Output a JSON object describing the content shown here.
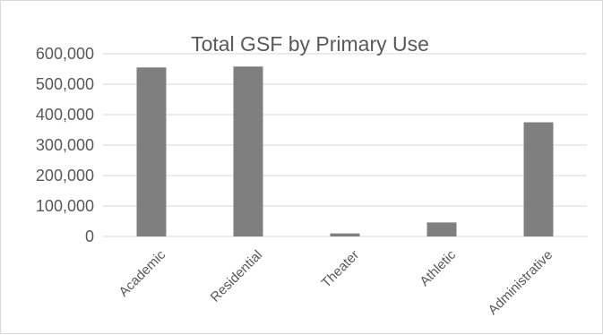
{
  "chart_data": {
    "type": "bar",
    "title": "Total GSF by Primary Use",
    "xlabel": "",
    "ylabel": "",
    "categories": [
      "Academic",
      "Residential",
      "Theater",
      "Athletic",
      "Administrative"
    ],
    "values": [
      555000,
      558000,
      10000,
      46000,
      375000
    ],
    "ylim": [
      0,
      600000
    ],
    "yticks": [
      0,
      100000,
      200000,
      300000,
      400000,
      500000,
      600000
    ],
    "ytick_labels": [
      "0",
      "100,000",
      "200,000",
      "300,000",
      "400,000",
      "500,000",
      "600,000"
    ],
    "grid": true,
    "legend": "none",
    "bar_color": "#7f7f7f"
  }
}
